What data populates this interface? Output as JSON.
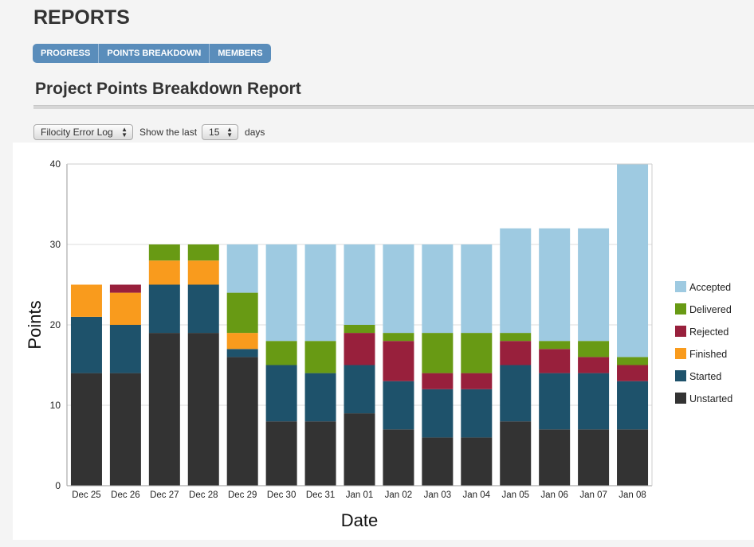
{
  "page": {
    "title": "REPORTS"
  },
  "tabs": [
    "PROGRESS",
    "POINTS BREAKDOWN",
    "MEMBERS"
  ],
  "report": {
    "title": "Project Points Breakdown Report"
  },
  "controls": {
    "project": "Filocity Error Log",
    "show_last_label": "Show the last",
    "days_value": "15",
    "days_label": "days"
  },
  "chart_data": {
    "type": "bar",
    "stacked": true,
    "xlabel": "Date",
    "ylabel": "Points",
    "ylim": [
      0,
      40
    ],
    "yticks": [
      0,
      10,
      20,
      30,
      40
    ],
    "grid": true,
    "legend_position": "right",
    "categories": [
      "Dec 25",
      "Dec 26",
      "Dec 27",
      "Dec 28",
      "Dec 29",
      "Dec 30",
      "Dec 31",
      "Jan 01",
      "Jan 02",
      "Jan 03",
      "Jan 04",
      "Jan 05",
      "Jan 06",
      "Jan 07",
      "Jan 08"
    ],
    "series": [
      {
        "name": "Unstarted",
        "color": "#333333",
        "values": [
          14,
          14,
          19,
          19,
          16,
          8,
          8,
          9,
          7,
          6,
          6,
          8,
          7,
          7,
          7
        ]
      },
      {
        "name": "Started",
        "color": "#1e526b",
        "values": [
          7,
          6,
          6,
          6,
          1,
          7,
          6,
          6,
          6,
          6,
          6,
          7,
          7,
          7,
          6
        ]
      },
      {
        "name": "Finished",
        "color": "#f99b1d",
        "values": [
          4,
          4,
          3,
          3,
          2,
          0,
          0,
          0,
          0,
          0,
          0,
          0,
          0,
          0,
          0
        ]
      },
      {
        "name": "Rejected",
        "color": "#98203c",
        "values": [
          0,
          1,
          0,
          0,
          0,
          0,
          0,
          4,
          5,
          2,
          2,
          3,
          3,
          2,
          2
        ]
      },
      {
        "name": "Delivered",
        "color": "#689a14",
        "values": [
          0,
          0,
          2,
          2,
          5,
          3,
          4,
          1,
          1,
          5,
          5,
          1,
          1,
          2,
          1
        ]
      },
      {
        "name": "Accepted",
        "color": "#9ecae1",
        "values": [
          0,
          0,
          0,
          0,
          6,
          12,
          12,
          10,
          11,
          11,
          11,
          13,
          14,
          14,
          24
        ]
      }
    ]
  }
}
